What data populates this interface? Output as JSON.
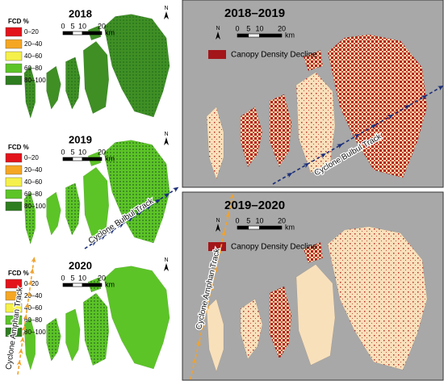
{
  "panels": [
    {
      "year": "2018",
      "north": "N",
      "legend": {
        "title": "FCD %",
        "items": [
          {
            "label": "0–20",
            "color": "#e3131b"
          },
          {
            "label": "20–40",
            "color": "#f5a623"
          },
          {
            "label": "40–60",
            "color": "#f5f04a"
          },
          {
            "label": "60–80",
            "color": "#5cc427"
          },
          {
            "label": "80–100",
            "color": "#2e7d1f"
          }
        ]
      },
      "scale": {
        "ticks": [
          0,
          5,
          10,
          20
        ],
        "unit": "km"
      }
    },
    {
      "year": "2019",
      "north": "N",
      "legend": {
        "title": "FCD %",
        "items": [
          {
            "label": "0–20",
            "color": "#e3131b"
          },
          {
            "label": "20–40",
            "color": "#f5a623"
          },
          {
            "label": "40–60",
            "color": "#f5f04a"
          },
          {
            "label": "60–80",
            "color": "#5cc427"
          },
          {
            "label": "80–100",
            "color": "#2e7d1f"
          }
        ]
      },
      "scale": {
        "ticks": [
          0,
          5,
          10,
          20
        ],
        "unit": "km"
      },
      "track": "Cyclone Bulbul Track"
    },
    {
      "year": "2020",
      "north": "N",
      "legend": {
        "title": "FCD %",
        "items": [
          {
            "label": "0–20",
            "color": "#e3131b"
          },
          {
            "label": "20–40",
            "color": "#f5a623"
          },
          {
            "label": "40–60",
            "color": "#f5f04a"
          },
          {
            "label": "60–80",
            "color": "#5cc427"
          },
          {
            "label": "80–100",
            "color": "#2e7d1f"
          }
        ]
      },
      "scale": {
        "ticks": [
          0,
          5,
          10,
          20
        ],
        "unit": "km"
      },
      "track": "Cyclone Amphan Track"
    }
  ],
  "change_panels": [
    {
      "title": "2018–2019",
      "north": "N",
      "scale": {
        "ticks": [
          0,
          5,
          10,
          20
        ],
        "unit": "km"
      },
      "legend": {
        "label": "Canopy Density Decline",
        "color": "#a3161a"
      },
      "track": "Cyclone Bulbul Track"
    },
    {
      "title": "2019–2020",
      "north": "N",
      "scale": {
        "ticks": [
          0,
          5,
          10,
          20
        ],
        "unit": "km"
      },
      "legend": {
        "label": "Canopy Density Decline",
        "color": "#a3161a"
      },
      "track": "Cyclone Amphan Track"
    }
  ]
}
